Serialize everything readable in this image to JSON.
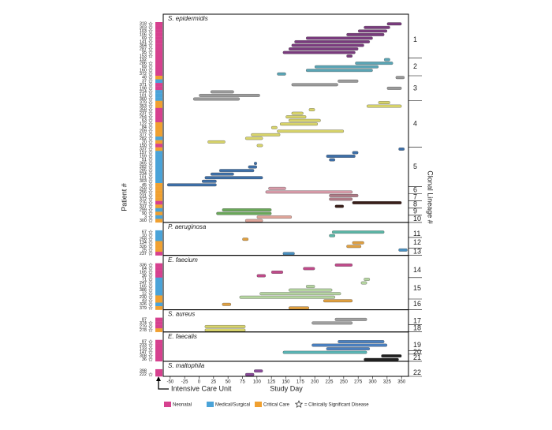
{
  "chart_data": {
    "type": "timeline",
    "x_label": "Study Day",
    "y_label": "Patient #",
    "y2_label": "Clonal Lineage #",
    "xlim": [
      -62,
      362
    ],
    "xticks": [
      -50,
      -25,
      0,
      25,
      50,
      75,
      100,
      125,
      150,
      175,
      200,
      225,
      250,
      275,
      300,
      325,
      350
    ],
    "wards": [
      {
        "name": "Neonatal",
        "color": "#d6418f"
      },
      {
        "name": "Medical/Surgical",
        "color": "#4aa3d8"
      },
      {
        "name": "Critical Care",
        "color": "#f0a030"
      }
    ],
    "icu_label": "Intensive Care Unit",
    "star_label": "= Clinically Significant Disease",
    "panels": [
      {
        "title": "S. epidermidis",
        "lineages": [
          {
            "label": "1",
            "color": "#7a3b7e",
            "rows": [
              [
                "318",
                0,
                true,
                325,
                350
              ],
              [
                "303",
                0,
                true,
                285,
                330
              ],
              [
                "103",
                0,
                true,
                275,
                325
              ],
              [
                "106",
                0,
                true,
                255,
                320
              ],
              [
                "69",
                0,
                true,
                185,
                300
              ],
              [
                "141",
                0,
                true,
                165,
                295
              ],
              [
                "364",
                0,
                true,
                160,
                285
              ],
              [
                "287",
                0,
                true,
                155,
                275
              ],
              [
                "95",
                0,
                true,
                145,
                270
              ],
              [
                "153",
                0,
                true,
                255,
                265
              ]
            ]
          },
          {
            "label": "2",
            "color": "#5aa5b5",
            "rows": [
              [
                "192",
                0,
                false,
                320,
                330
              ],
              [
                "286",
                0,
                true,
                270,
                335
              ],
              [
                "69",
                0,
                true,
                200,
                310
              ],
              [
                "160",
                0,
                true,
                185,
                300
              ],
              [
                "372",
                0,
                true,
                135,
                150
              ]
            ]
          },
          {
            "label": "3",
            "color": "#9a9a9a",
            "rows": [
              [
                "48",
                2,
                true,
                340,
                355
              ],
              [
                "37",
                1,
                true,
                240,
                275
              ],
              [
                "371",
                0,
                true,
                160,
                240
              ],
              [
                "198",
                0,
                true,
                325,
                350
              ],
              [
                "214",
                1,
                true,
                20,
                60
              ],
              [
                "101",
                1,
                true,
                0,
                105
              ],
              [
                "360",
                1,
                true,
                -10,
                70
              ]
            ]
          },
          {
            "label": "4",
            "color": "#d8d46a",
            "rows": [
              [
                "379",
                2,
                true,
                310,
                330
              ],
              [
                "353",
                2,
                true,
                290,
                350
              ],
              [
                "358",
                0,
                true,
                190,
                200
              ],
              [
                "237",
                0,
                true,
                160,
                180
              ],
              [
                "264",
                0,
                true,
                150,
                185
              ],
              [
                "63",
                0,
                true,
                155,
                210
              ],
              [
                "122",
                2,
                true,
                140,
                205
              ],
              [
                "84",
                2,
                true,
                125,
                135
              ],
              [
                "209",
                2,
                true,
                135,
                250
              ],
              [
                "377",
                2,
                true,
                90,
                140
              ],
              [
                "282",
                1,
                true,
                80,
                110
              ],
              [
                "20",
                2,
                true,
                15,
                45
              ],
              [
                "150",
                0,
                true,
                100,
                110
              ]
            ]
          },
          {
            "label": "5",
            "color": "#3d6fa8",
            "rows": [
              [
                "337",
                2,
                true,
                345,
                355
              ],
              [
                "157",
                1,
                true,
                265,
                275
              ],
              [
                "159",
                1,
                true,
                220,
                270
              ],
              [
                "51",
                1,
                true,
                225,
                235
              ],
              [
                "365",
                1,
                true,
                95,
                100
              ],
              [
                "282",
                1,
                true,
                85,
                100
              ],
              [
                "285",
                1,
                true,
                35,
                95
              ],
              [
                "234",
                1,
                true,
                20,
                60
              ],
              [
                "101",
                1,
                true,
                10,
                110
              ],
              [
                "303",
                1,
                true,
                5,
                30
              ],
              [
                "45",
                2,
                true,
                -55,
                30
              ]
            ]
          },
          {
            "label": "6",
            "color": "#d79aa8",
            "rows": [
              [
                "258",
                2,
                true,
                120,
                150
              ],
              [
                "256",
                2,
                true,
                115,
                265
              ]
            ]
          },
          {
            "label": "7",
            "color": "#b07a86",
            "rows": [
              [
                "231",
                2,
                true,
                225,
                275
              ],
              [
                "372",
                2,
                true,
                225,
                265
              ]
            ]
          },
          {
            "label": "8",
            "color": "#3a1f1a",
            "rows": [
              [
                "276",
                0,
                true,
                265,
                350
              ],
              [
                "337",
                2,
                true,
                235,
                250
              ]
            ]
          },
          {
            "label": "9",
            "color": "#6aa85a",
            "rows": [
              [
                "299",
                1,
                true,
                40,
                125
              ],
              [
                "90",
                2,
                true,
                30,
                125
              ]
            ]
          },
          {
            "label": "10",
            "color": "#e0a59a",
            "rows": [
              [
                "3",
                1,
                true,
                100,
                160
              ],
              [
                "300",
                2,
                true,
                80,
                110
              ]
            ]
          }
        ]
      },
      {
        "title": "P. aeruginosa",
        "lineages": [
          {
            "label": "11",
            "color": "#5ab5a5",
            "rows": [
              [
                "67",
                1,
                true,
                230,
                320
              ],
              [
                "10",
                1,
                true,
                225,
                235
              ]
            ]
          },
          {
            "label": "12",
            "color": "#e0a040",
            "rows": [
              [
                "258",
                1,
                true,
                75,
                85
              ],
              [
                "134",
                2,
                true,
                265,
                285
              ],
              [
                "326",
                2,
                true,
                255,
                280
              ]
            ]
          },
          {
            "label": "13",
            "color": "#4a90c0",
            "rows": [
              [
                "25",
                2,
                true,
                345,
                360
              ],
              [
                "237",
                0,
                true,
                145,
                165
              ]
            ]
          }
        ]
      },
      {
        "title": "E. faecium",
        "lineages": [
          {
            "label": "14",
            "color": "#c04a8a",
            "rows": [
              [
                "336",
                0,
                true,
                235,
                265
              ],
              [
                "64",
                0,
                true,
                180,
                200
              ],
              [
                "165",
                0,
                true,
                125,
                145
              ],
              [
                "36",
                0,
                true,
                100,
                115
              ]
            ]
          },
          {
            "label": "15",
            "color": "#b5d5a0",
            "rows": [
              [
                "71",
                1,
                true,
                285,
                295
              ],
              [
                "247",
                1,
                true,
                280,
                290
              ],
              [
                "165",
                1,
                true,
                185,
                200
              ],
              [
                "386",
                1,
                true,
                155,
                230
              ],
              [
                "12",
                1,
                true,
                105,
                245
              ],
              [
                "230",
                2,
                true,
                70,
                235
              ]
            ]
          },
          {
            "label": "16",
            "color": "#e0a040",
            "rows": [
              [
                "43",
                2,
                true,
                215,
                265
              ],
              [
                "326",
                1,
                true,
                40,
                55
              ],
              [
                "379",
                2,
                true,
                155,
                190
              ]
            ]
          }
        ]
      },
      {
        "title": "S. aureus",
        "lineages": [
          {
            "label": "17",
            "color": "#a0a0a0",
            "rows": [
              [
                "87",
                0,
                false,
                235,
                290
              ],
              [
                "374",
                0,
                true,
                195,
                265
              ]
            ]
          },
          {
            "label": "18",
            "color": "#d8d46a",
            "rows": [
              [
                "279",
                0,
                true,
                10,
                80
              ],
              [
                "278",
                2,
                true,
                10,
                80
              ]
            ]
          }
        ]
      },
      {
        "title": "E. faecalis",
        "lineages": [
          {
            "label": "19",
            "color": "#4a80c0",
            "rows": [
              [
                "87",
                0,
                true,
                240,
                320
              ],
              [
                "233",
                0,
                true,
                195,
                325
              ],
              [
                "133",
                0,
                true,
                220,
                295
              ]
            ]
          },
          {
            "label": "20",
            "color": "#5ab5b5",
            "rows": [
              [
                "147",
                0,
                true,
                145,
                290
              ]
            ]
          },
          {
            "label": "21",
            "color": "#222222",
            "rows": [
              [
                "308",
                0,
                true,
                315,
                350
              ],
              [
                "36",
                0,
                true,
                285,
                345
              ]
            ]
          }
        ]
      },
      {
        "title": "S. maltophila",
        "lineages": [
          {
            "label": "22",
            "color": "#8a4a9a",
            "rows": [
              [
                "398",
                0,
                false,
                95,
                110
              ],
              [
                "222",
                0,
                true,
                80,
                95
              ]
            ]
          }
        ]
      }
    ]
  }
}
